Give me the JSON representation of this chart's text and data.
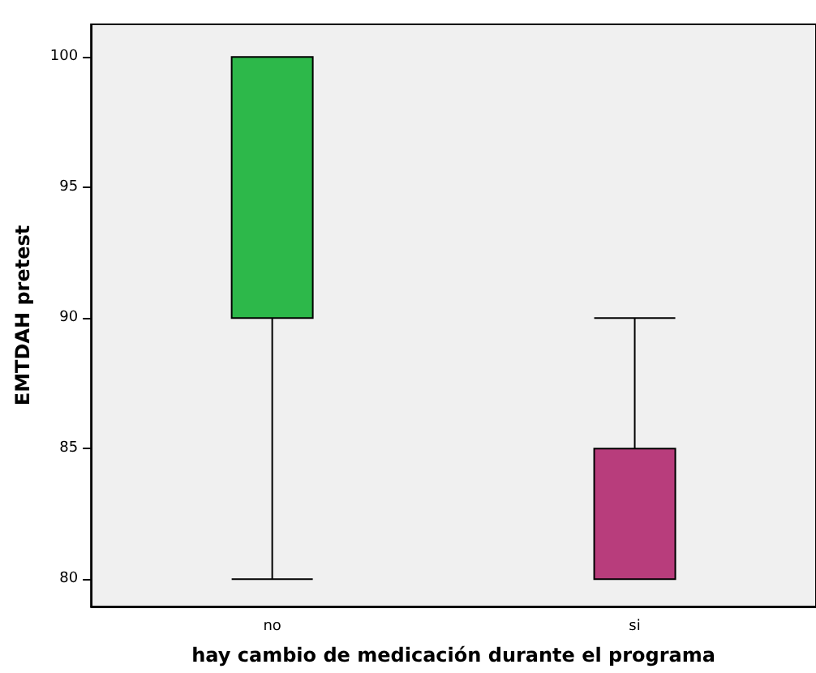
{
  "chart_data": {
    "type": "box",
    "xlabel": "hay cambio de medicación durante el programa",
    "ylabel": "EMTDAH pretest",
    "categories": [
      "no",
      "si"
    ],
    "boxes": [
      {
        "low": 80,
        "q1": 90,
        "median": 90,
        "q3": 100,
        "high": 100
      },
      {
        "low": 80,
        "q1": 80,
        "median": 80,
        "q3": 85,
        "high": 90
      }
    ],
    "colors": [
      "#2db84a",
      "#b83d7c"
    ],
    "ylim": [
      78.95,
      101.25
    ],
    "yticks": [
      80,
      85,
      90,
      95,
      100
    ],
    "grid": false
  }
}
